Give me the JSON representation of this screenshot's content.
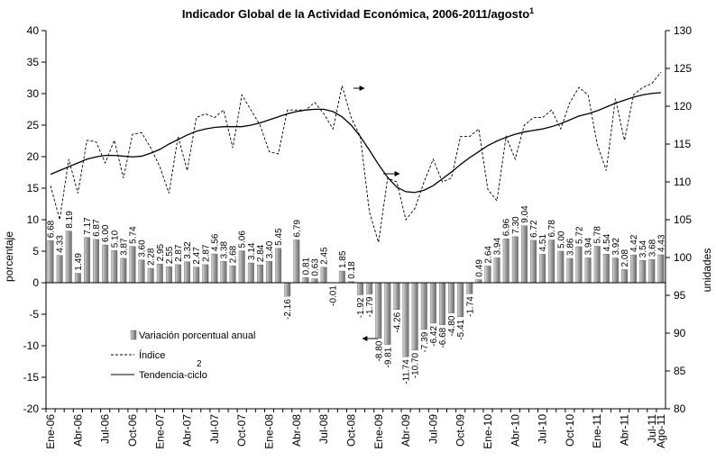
{
  "chart_data": {
    "type": "bar_line",
    "title": "Indicador Global de la Actividad Económica, 2006-2011/agosto",
    "title_note": "1",
    "y_label": "porcentaje",
    "y2_label": "unidades",
    "legend_note": "2",
    "categories": [
      "Ene-06",
      null,
      null,
      "Abr-06",
      null,
      null,
      "Jul-06",
      null,
      null,
      "Oct-06",
      null,
      null,
      "Ene-07",
      null,
      null,
      "Abr-07",
      null,
      null,
      "Jul-07",
      null,
      null,
      "Oct-07",
      null,
      null,
      "Ene-08",
      null,
      null,
      "Abr-08",
      null,
      null,
      "Jul-08",
      null,
      null,
      "Oct-08",
      null,
      null,
      "Ene-09",
      null,
      null,
      "Abr-09",
      null,
      null,
      "Jul-09",
      null,
      null,
      "Oct-09",
      null,
      null,
      "Ene-10",
      null,
      null,
      "Abr-10",
      null,
      null,
      "Jul-10",
      null,
      null,
      "Oct-10",
      null,
      null,
      "Ene-11",
      null,
      null,
      "Abr-11",
      null,
      null,
      "Jul-11",
      "Ago-11"
    ],
    "ylim": [
      -20,
      40
    ],
    "yticks": [
      -20,
      -15,
      -10,
      -5,
      0,
      5,
      10,
      15,
      20,
      25,
      30,
      35,
      40
    ],
    "y2lim": [
      80,
      130
    ],
    "y2ticks": [
      80,
      85,
      90,
      95,
      100,
      105,
      110,
      115,
      120,
      125,
      130
    ],
    "series": [
      {
        "name": "Variación porcentual anual",
        "type": "bar",
        "color": "#9a9a9a",
        "values": [
          6.68,
          4.33,
          8.19,
          1.49,
          7.17,
          6.87,
          6.0,
          5.1,
          3.87,
          5.74,
          3.6,
          2.28,
          2.95,
          2.55,
          2.87,
          3.32,
          2.47,
          2.87,
          4.56,
          3.38,
          2.68,
          5.06,
          3.14,
          2.84,
          3.4,
          5.45,
          -2.16,
          6.79,
          0.81,
          0.63,
          2.45,
          -0.01,
          1.85,
          0.18,
          -1.92,
          -1.79,
          -8.8,
          -9.81,
          -4.26,
          -11.74,
          -10.7,
          -7.39,
          -6.42,
          -6.68,
          -4.8,
          -5.41,
          -1.74,
          0.49,
          2.64,
          3.94,
          6.96,
          7.3,
          9.04,
          6.72,
          4.51,
          6.78,
          5.0,
          3.86,
          5.72,
          3.94,
          5.78,
          4.54,
          3.92,
          2.08,
          4.42,
          3.54,
          3.68,
          4.43
        ],
        "value_labels": [
          "6.68",
          "4.33",
          "8.19",
          "1.49",
          "7.17",
          "6.87",
          "6.00",
          "5.10",
          "3.87",
          "5.74",
          "3.60",
          "2.28",
          "2.95",
          "2.55",
          "2.87",
          "3.32",
          "2.47",
          "2.87",
          "4.56",
          "3.38",
          "2.68",
          "5.06",
          "3.14",
          "2.84",
          "3.40",
          "5.45",
          "-2.16",
          "6.79",
          "0.81",
          "0.63",
          "2.45",
          "-0.01",
          "1.85",
          "0.18",
          "-1.92",
          "-1.79",
          "-8.80",
          "-9.81",
          "-4.26",
          "-11.74",
          "-10.70",
          "-7.39",
          "-6.42",
          "-6.68",
          "-4.80",
          "-5.41",
          "-1.74",
          "0.49",
          "2.64",
          "3.94",
          "6.96",
          "7.30",
          "9.04",
          "6.72",
          "4.51",
          "6.78",
          "5.00",
          "3.86",
          "5.72",
          "3.94",
          "5.78",
          "4.54",
          "3.92",
          "2.08",
          "4.42",
          "3.54",
          "3.68",
          "4.43"
        ]
      },
      {
        "name": "Índice",
        "type": "line",
        "axis": "y2",
        "style": "dashed",
        "color": "#000000",
        "values": [
          109.5,
          105,
          113,
          108.5,
          115.5,
          115.3,
          112.5,
          115.5,
          110.5,
          116.3,
          116.5,
          114.5,
          112,
          108.5,
          116,
          111.5,
          118.5,
          119,
          118.5,
          119.5,
          114.5,
          121.5,
          119.5,
          117.5,
          114,
          113.7,
          119.5,
          119.5,
          119.5,
          120.5,
          119,
          117,
          122.7,
          118.5,
          116,
          106,
          102,
          110.5,
          110,
          105,
          106.5,
          110,
          113,
          110,
          110.5,
          116,
          116,
          117,
          109,
          107.5,
          116,
          113,
          117.5,
          118.5,
          118.5,
          119.5,
          117,
          120.5,
          122.5,
          121.5,
          115,
          111.5,
          121,
          115.5,
          121.5,
          122.5,
          123,
          124.5
        ]
      },
      {
        "name": "Tendencia-ciclo",
        "type": "line",
        "axis": "y2",
        "style": "solid",
        "color": "#000000",
        "values": [
          111.0,
          111.5,
          112.0,
          112.5,
          113.0,
          113.3,
          113.5,
          113.5,
          113.4,
          113.3,
          113.4,
          113.8,
          114.3,
          115.0,
          115.6,
          116.2,
          116.7,
          117.0,
          117.2,
          117.3,
          117.3,
          117.3,
          117.5,
          117.8,
          118.2,
          118.6,
          119.0,
          119.3,
          119.5,
          119.6,
          119.6,
          119.3,
          118.6,
          117.5,
          116.0,
          114.2,
          112.3,
          110.6,
          109.3,
          108.7,
          108.6,
          108.9,
          109.5,
          110.4,
          111.3,
          112.3,
          113.2,
          114.0,
          114.8,
          115.4,
          115.9,
          116.3,
          116.6,
          116.8,
          117.0,
          117.3,
          117.7,
          118.2,
          118.7,
          119.0,
          119.4,
          119.9,
          120.4,
          120.8,
          121.2,
          121.5,
          121.7,
          121.8
        ]
      }
    ]
  }
}
